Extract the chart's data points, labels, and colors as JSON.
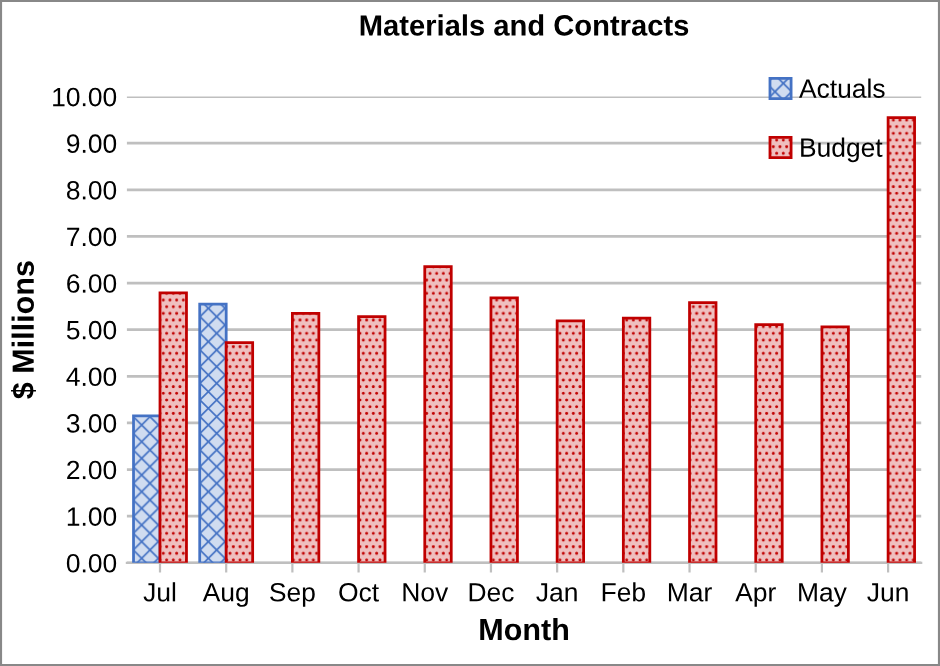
{
  "chart_data": {
    "type": "bar",
    "title": "Materials and Contracts",
    "xlabel": "Month",
    "ylabel": "$ Millions",
    "categories": [
      "Jul",
      "Aug",
      "Sep",
      "Oct",
      "Nov",
      "Dec",
      "Jan",
      "Feb",
      "Mar",
      "Apr",
      "May",
      "Jun"
    ],
    "series": [
      {
        "name": "Actuals",
        "color": "#4472c4",
        "values": [
          3.15,
          5.55,
          null,
          null,
          null,
          null,
          null,
          null,
          null,
          null,
          null,
          null
        ]
      },
      {
        "name": "Budget",
        "color": "#c00000",
        "values": [
          5.79,
          4.72,
          5.35,
          5.28,
          6.35,
          5.68,
          5.19,
          5.25,
          5.58,
          5.11,
          5.06,
          9.55
        ]
      }
    ],
    "ylim": [
      0,
      10
    ],
    "yticks": [
      {
        "value": 0,
        "label": "0.00"
      },
      {
        "value": 1,
        "label": "1.00"
      },
      {
        "value": 2,
        "label": "2.00"
      },
      {
        "value": 3,
        "label": "3.00"
      },
      {
        "value": 4,
        "label": "4.00"
      },
      {
        "value": 5,
        "label": "5.00"
      },
      {
        "value": 6,
        "label": "6.00"
      },
      {
        "value": 7,
        "label": "7.00"
      },
      {
        "value": 8,
        "label": "8.00"
      },
      {
        "value": 9,
        "label": "9.00"
      },
      {
        "value": 10,
        "label": "10.00"
      }
    ],
    "grid": "y",
    "legend": "top right"
  }
}
